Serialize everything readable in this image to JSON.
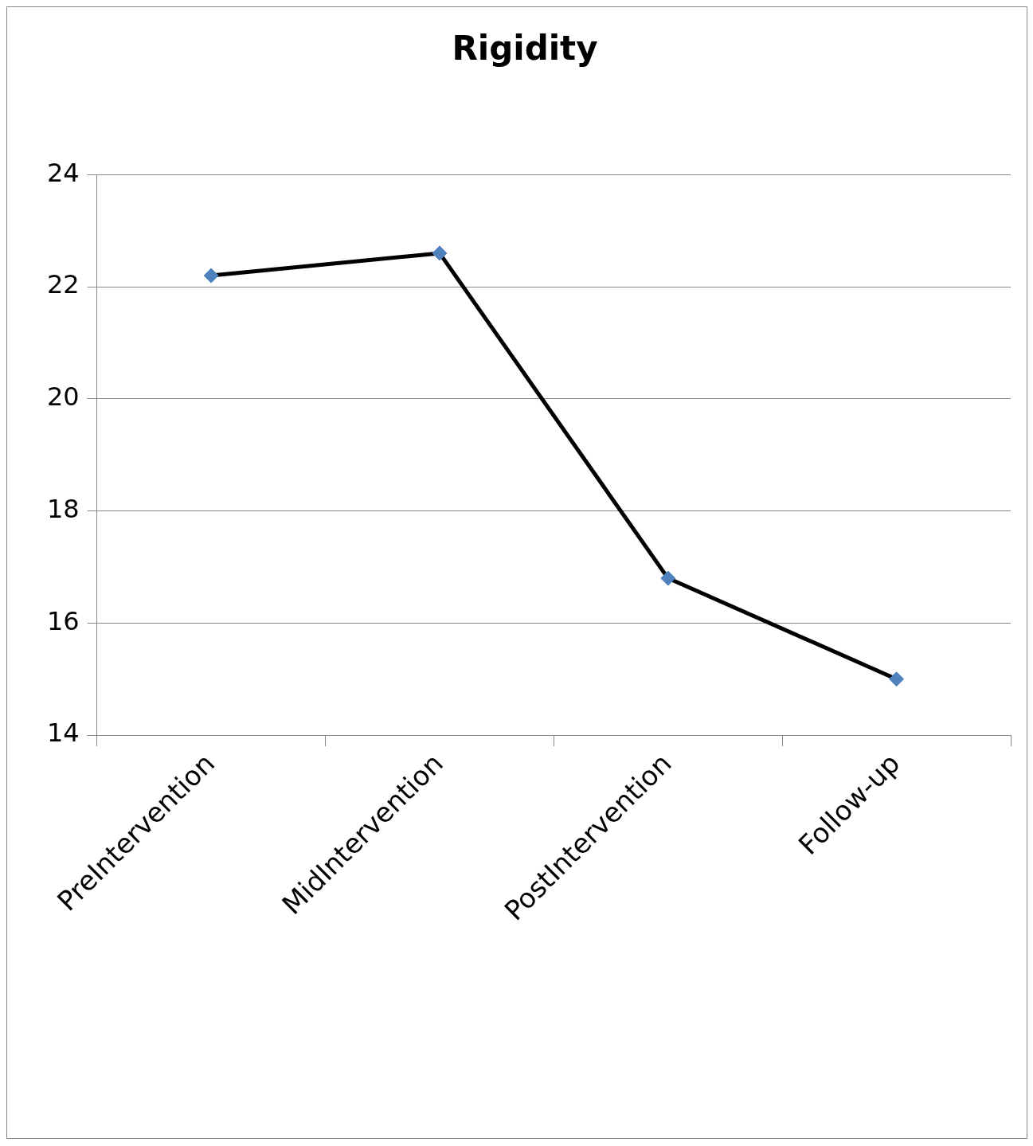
{
  "chart_data": {
    "type": "line",
    "title": "Rigidity",
    "categories": [
      "PreIntervention",
      "MidIntervention",
      "PostIntervention",
      "Follow-up"
    ],
    "series": [
      {
        "color": "#000000",
        "colors": [
          "#4f81bd",
          "#4f81bd",
          "#4f81bd",
          "#4f81bd"
        ],
        "values": [
          22.2,
          22.6,
          16.8,
          15.0
        ]
      }
    ],
    "ylim": [
      14,
      24
    ],
    "yticks": [
      14,
      16,
      18,
      20,
      22,
      24
    ],
    "grid": "y",
    "legend": false,
    "marker": "diamond",
    "line_style": "solid"
  }
}
